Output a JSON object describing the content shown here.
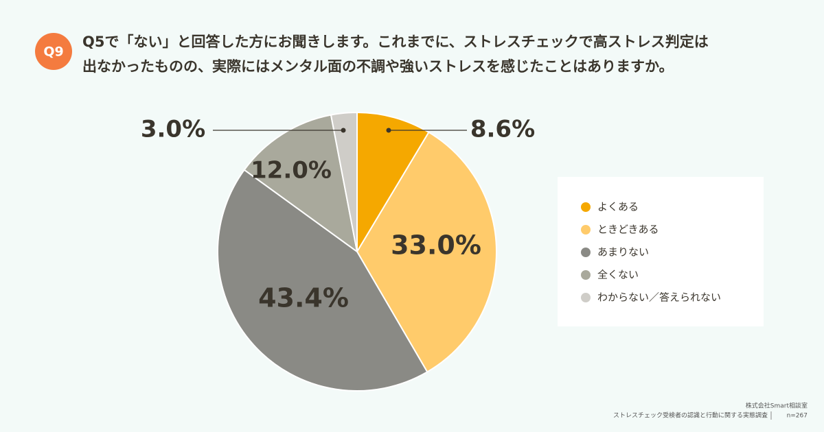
{
  "question_number": "Q9",
  "title_lines": [
    "Q5で「ない」と回答した方にお聞きします。これまでに、ストレスチェックで高ストレス判定は",
    "出なかったものの、実際にはメンタル面の不調や強いストレスを感じたことはありますか。"
  ],
  "chart_data": {
    "type": "pie",
    "categories": [
      "よくある",
      "ときどきある",
      "あまりない",
      "全くない",
      "わからない／答えられない"
    ],
    "values": [
      8.6,
      33.0,
      43.4,
      12.0,
      3.0
    ],
    "value_labels": [
      "8.6%",
      "33.0%",
      "43.4%",
      "12.0%",
      "3.0%"
    ],
    "colors": [
      "#F5A800",
      "#FFCB6B",
      "#8A8A85",
      "#A9A99C",
      "#CFCDC8"
    ],
    "legend": "right"
  },
  "footer": {
    "company": "株式会社Smart相談室",
    "survey": "ストレスチェック受検者の認識と行動に関する実態調査",
    "sample": "n=267"
  }
}
